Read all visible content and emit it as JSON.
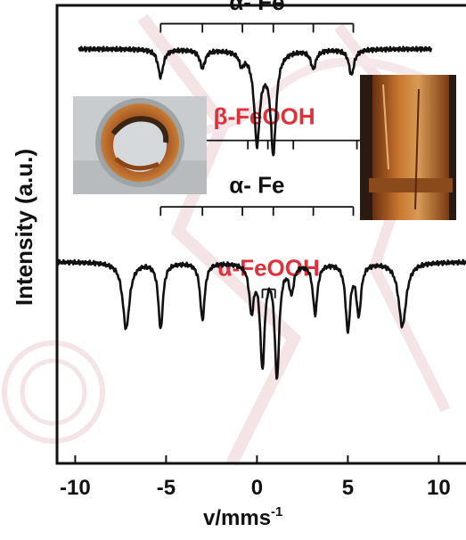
{
  "chart_data": {
    "type": "line",
    "title": "",
    "xlabel_main": "v/mms",
    "xlabel_exp": "-1",
    "ylabel": "Intensity (a.u.)",
    "xlim": [
      -11,
      11.5
    ],
    "ylim": [
      -1.0,
      1.0
    ],
    "xticks": [
      -10,
      -5,
      0,
      5,
      10
    ],
    "xtick_labels": [
      "-10",
      "-5",
      "0",
      "5",
      "10"
    ],
    "grid": false,
    "series": [
      {
        "name": "",
        "baseline": 0.81,
        "x_range": [
          -9.8,
          9.6
        ],
        "lines": [
          {
            "pos": -5.3,
            "depth": 0.12,
            "width": 0.35
          },
          {
            "pos": -3.0,
            "depth": 0.08,
            "width": 0.35
          },
          {
            "pos": -0.85,
            "depth": 0.05,
            "width": 0.3
          },
          {
            "pos": 0.0,
            "depth": 0.36,
            "width": 0.35
          },
          {
            "pos": 0.9,
            "depth": 0.42,
            "width": 0.35
          },
          {
            "pos": 0.3,
            "depth": 0.06,
            "width": 1.2
          },
          {
            "pos": 3.1,
            "depth": 0.08,
            "width": 0.35
          },
          {
            "pos": 5.2,
            "depth": 0.11,
            "width": 0.35
          }
        ]
      },
      {
        "name": "",
        "baseline": -0.12,
        "x_range": [
          -11,
          11.5
        ],
        "lines": [
          {
            "pos": -7.2,
            "depth": 0.29,
            "width": 0.45
          },
          {
            "pos": -5.3,
            "depth": 0.29,
            "width": 0.3
          },
          {
            "pos": -3.0,
            "depth": 0.25,
            "width": 0.3
          },
          {
            "pos": -0.3,
            "depth": 0.2,
            "width": 0.3
          },
          {
            "pos": 0.3,
            "depth": 0.44,
            "width": 0.3
          },
          {
            "pos": 1.1,
            "depth": 0.49,
            "width": 0.3
          },
          {
            "pos": 1.9,
            "depth": 0.12,
            "width": 0.3
          },
          {
            "pos": 3.2,
            "depth": 0.22,
            "width": 0.3
          },
          {
            "pos": 5.0,
            "depth": 0.29,
            "width": 0.3
          },
          {
            "pos": 5.6,
            "depth": 0.22,
            "width": 0.3
          },
          {
            "pos": 8.0,
            "depth": 0.28,
            "width": 0.5
          }
        ]
      }
    ],
    "annotations": [
      {
        "text": "α- Fe",
        "color": "#111111",
        "bar_y": 0.92,
        "label_y": 0.98,
        "ticks_x": [
          -5.3,
          -3.0,
          -0.8,
          0.9,
          3.1,
          5.3
        ]
      },
      {
        "text": "β-FeOOH",
        "color": "#e0303a",
        "bar_y": 0.41,
        "label_y": 0.48,
        "ticks_x": [
          -7.2,
          -3.8,
          -0.5,
          0.6,
          2.0,
          5.5,
          8.0
        ]
      },
      {
        "text": "α- Fe",
        "color": "#111111",
        "bar_y": 0.12,
        "label_y": 0.18,
        "ticks_x": [
          -5.3,
          -3.0,
          -0.8,
          0.9,
          3.1,
          5.3
        ]
      },
      {
        "text": "α-FeOOH",
        "color": "#e0303a",
        "bar_y": -0.24,
        "label_y": -0.18,
        "ticks_x": [
          0.3,
          1.0
        ]
      }
    ]
  },
  "insets": [
    {
      "name": "corroded-pipe-cross-section-photo"
    },
    {
      "name": "rusted-pipe-exterior-photo"
    }
  ],
  "colors": {
    "axis": "#111111",
    "curve": "#111111",
    "label_red": "#e0303a",
    "rust": "#b8662a",
    "watermark": "#f2e2e4"
  }
}
